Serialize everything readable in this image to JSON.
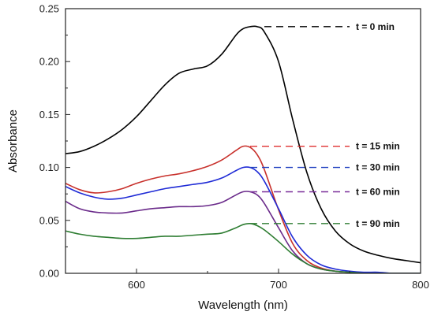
{
  "chart_data": {
    "type": "line",
    "title": "",
    "xlabel": "Wavelength (nm)",
    "ylabel": "Absorbance",
    "xlim": [
      550,
      800
    ],
    "ylim": [
      0.0,
      0.25
    ],
    "x_ticks": [
      600,
      700,
      800
    ],
    "y_ticks": [
      0.0,
      0.05,
      0.1,
      0.15,
      0.2,
      0.25
    ],
    "x_tick_labels": [
      "600",
      "700",
      "800"
    ],
    "y_tick_labels": [
      "0.00",
      "0.05",
      "0.10",
      "0.15",
      "0.20",
      "0.25"
    ],
    "grid": false,
    "x": [
      550,
      560,
      570,
      580,
      590,
      600,
      610,
      620,
      630,
      640,
      650,
      660,
      670,
      675,
      680,
      685,
      690,
      700,
      710,
      720,
      730,
      740,
      750,
      760,
      770,
      780,
      790,
      800
    ],
    "series": [
      {
        "name": "t = 0 min",
        "color": "#000000",
        "values": [
          0.113,
          0.115,
          0.12,
          0.127,
          0.136,
          0.148,
          0.163,
          0.178,
          0.189,
          0.193,
          0.196,
          0.207,
          0.225,
          0.231,
          0.233,
          0.233,
          0.228,
          0.2,
          0.145,
          0.095,
          0.061,
          0.04,
          0.028,
          0.021,
          0.017,
          0.014,
          0.012,
          0.01
        ]
      },
      {
        "name": "t = 15 min",
        "color": "#c8302b",
        "values": [
          0.085,
          0.079,
          0.076,
          0.077,
          0.08,
          0.085,
          0.089,
          0.092,
          0.094,
          0.097,
          0.101,
          0.107,
          0.116,
          0.12,
          0.119,
          0.112,
          0.098,
          0.06,
          0.028,
          0.012,
          0.005,
          0.002,
          0.001,
          0.0,
          0.0,
          0.0,
          0.0,
          0.0
        ]
      },
      {
        "name": "t = 30 min",
        "color": "#1f2bd6",
        "values": [
          0.082,
          0.076,
          0.072,
          0.07,
          0.071,
          0.074,
          0.077,
          0.08,
          0.082,
          0.084,
          0.086,
          0.09,
          0.097,
          0.1,
          0.1,
          0.096,
          0.087,
          0.061,
          0.034,
          0.017,
          0.008,
          0.004,
          0.002,
          0.001,
          0.001,
          0.0,
          0.0,
          0.0
        ]
      },
      {
        "name": "t = 60 min",
        "color": "#6a2a8a",
        "values": [
          0.068,
          0.061,
          0.058,
          0.057,
          0.057,
          0.059,
          0.061,
          0.062,
          0.063,
          0.063,
          0.064,
          0.067,
          0.074,
          0.077,
          0.077,
          0.074,
          0.066,
          0.043,
          0.021,
          0.009,
          0.004,
          0.002,
          0.001,
          0.0,
          0.0,
          0.0,
          0.0,
          0.0
        ]
      },
      {
        "name": "t = 90 min",
        "color": "#2e7d32",
        "values": [
          0.04,
          0.037,
          0.035,
          0.034,
          0.033,
          0.033,
          0.034,
          0.035,
          0.035,
          0.036,
          0.037,
          0.038,
          0.043,
          0.046,
          0.047,
          0.045,
          0.041,
          0.03,
          0.018,
          0.009,
          0.004,
          0.002,
          0.001,
          0.0,
          0.0,
          0.0,
          0.0,
          0.0
        ]
      }
    ],
    "annotations": [
      {
        "text": "t = 0 min",
        "y": 0.233,
        "x_start": 690,
        "x_end": 750,
        "color": "#000000"
      },
      {
        "text": "t = 15 min",
        "y": 0.12,
        "x_start": 680,
        "x_end": 750,
        "color": "#e03030"
      },
      {
        "text": "t = 30 min",
        "y": 0.1,
        "x_start": 680,
        "x_end": 750,
        "color": "#1f3fbf"
      },
      {
        "text": "t = 60 min",
        "y": 0.077,
        "x_start": 680,
        "x_end": 750,
        "color": "#7a2f9a"
      },
      {
        "text": "t = 90 min",
        "y": 0.047,
        "x_start": 680,
        "x_end": 750,
        "color": "#2e7d32"
      }
    ]
  }
}
